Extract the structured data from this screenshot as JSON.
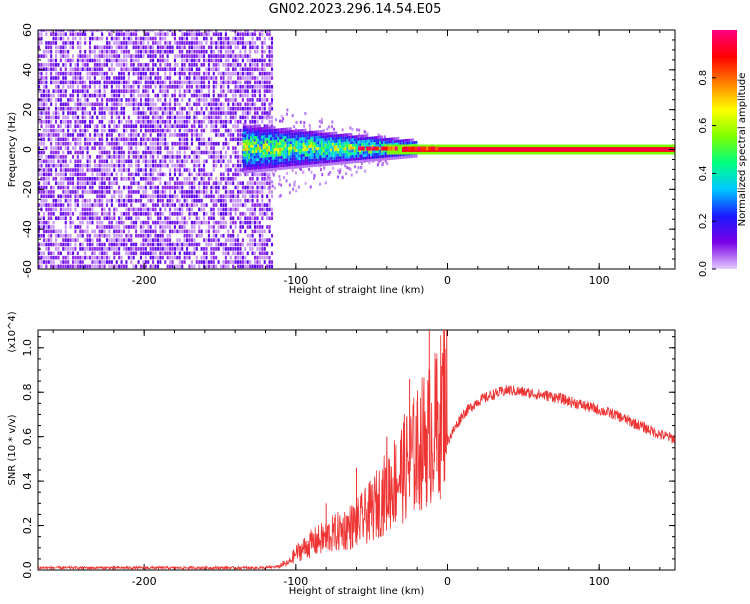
{
  "figure": {
    "title": "GN02.2023.296.14.54.E05"
  },
  "chart_data": [
    {
      "type": "heatmap",
      "xlabel": "Height of straight line (km)",
      "ylabel": "Frequency (Hz)",
      "xlim": [
        -270,
        150
      ],
      "ylim": [
        -60,
        60
      ],
      "x_ticks": [
        -200,
        -100,
        0,
        100
      ],
      "y_ticks": [
        -60,
        -40,
        -20,
        0,
        20,
        40,
        60
      ],
      "colorbar": {
        "label": "Normalized spectral amplitude",
        "range": [
          0,
          1
        ],
        "ticks": [
          "0.0",
          "0.2",
          "0.4",
          "0.6",
          "0.8"
        ],
        "colors": [
          "#e4ccff",
          "#7a00e6",
          "#1a1aff",
          "#00c8ff",
          "#00ff80",
          "#80ff00",
          "#ffff00",
          "#ff8000",
          "#ff0000",
          "#ff0080"
        ]
      },
      "regions": [
        {
          "x_from": -270,
          "x_to": -115,
          "freq_from": -60,
          "freq_to": 60,
          "amplitude": 0.15
        },
        {
          "x_from": -135,
          "x_to": -20,
          "freq_from": -12,
          "freq_to": 12,
          "amplitude": 0.45
        },
        {
          "x_from": -20,
          "x_to": 150,
          "freq_from": -1,
          "freq_to": 1,
          "amplitude": 0.9
        }
      ]
    },
    {
      "type": "line",
      "xlabel": "Height of straight line (km)",
      "ylabel": "SNR (10 * v/v)",
      "y_multiplier": "(x10^4)",
      "xlim": [
        -270,
        150
      ],
      "ylim": [
        0,
        1.08
      ],
      "x_ticks": [
        -200,
        -100,
        0,
        100
      ],
      "y_ticks": [
        0.0,
        0.2,
        0.4,
        0.6,
        0.8,
        1.0
      ],
      "series": [
        {
          "color": "#ee3333",
          "x": [
            -270,
            -250,
            -200,
            -150,
            -120,
            -105,
            -100,
            -90,
            -80,
            -70,
            -60,
            -50,
            -40,
            -30,
            -20,
            -15,
            -10,
            -5,
            0,
            10,
            20,
            30,
            40,
            50,
            60,
            70,
            80,
            90,
            100,
            110,
            120,
            130,
            140,
            150
          ],
          "y": [
            0.01,
            0.01,
            0.01,
            0.01,
            0.01,
            0.02,
            0.05,
            0.08,
            0.1,
            0.12,
            0.14,
            0.18,
            0.24,
            0.3,
            0.36,
            0.4,
            0.42,
            0.46,
            0.58,
            0.7,
            0.76,
            0.79,
            0.81,
            0.8,
            0.79,
            0.78,
            0.76,
            0.74,
            0.72,
            0.7,
            0.67,
            0.64,
            0.61,
            0.59
          ],
          "spikes": [
            {
              "x": -12,
              "y": 1.08
            },
            {
              "x": -7,
              "y": 0.92
            },
            {
              "x": -25,
              "y": 0.86
            },
            {
              "x": -20,
              "y": 0.76
            },
            {
              "x": -40,
              "y": 0.6
            },
            {
              "x": -60,
              "y": 0.46
            },
            {
              "x": -80,
              "y": 0.3
            }
          ]
        }
      ]
    }
  ]
}
